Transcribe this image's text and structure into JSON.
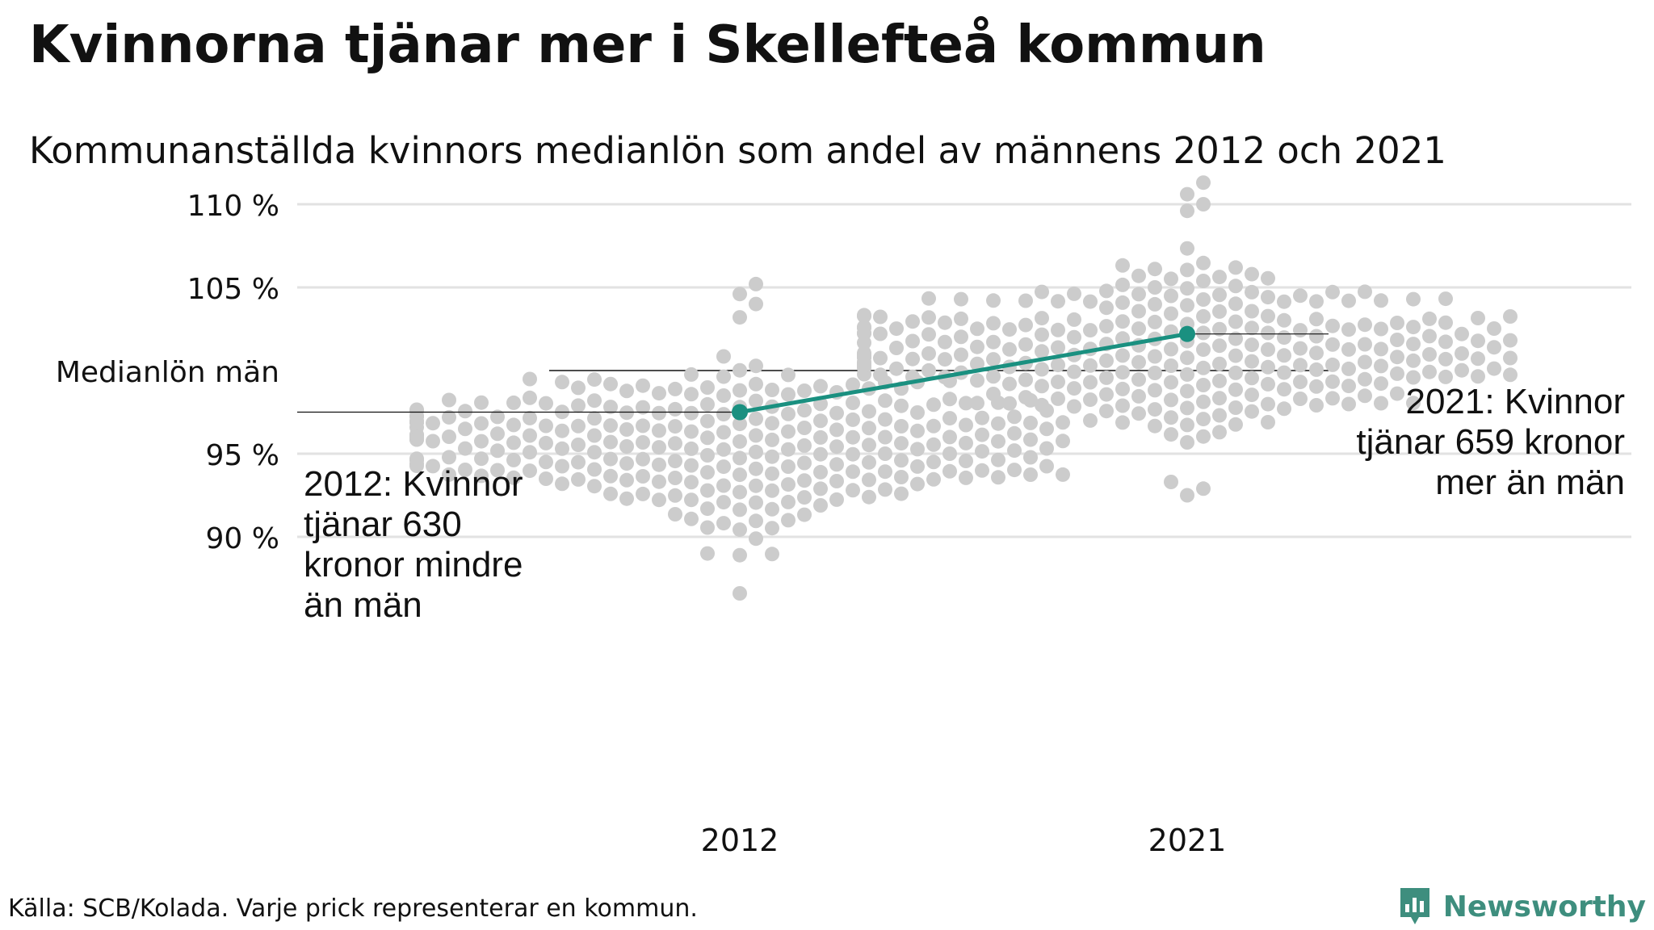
{
  "header": {
    "title": "Kvinnorna tjänar mer i Skellefteå kommun",
    "subtitle": "Kommunanställda kvinnors medianlön som andel av männens 2012 och 2021"
  },
  "footer": {
    "source": "Källa: SCB/Kolada. Varje prick representerar en kommun.",
    "brand": "Newsworthy"
  },
  "colors": {
    "dots": "#cccccc",
    "highlight": "#1a9080",
    "grid": "#e2e2e2",
    "reference": "#111111",
    "brand": "#3e8e7e"
  },
  "chart_data": {
    "type": "scatter",
    "style": "beeswarm",
    "categories": [
      "2012",
      "2021"
    ],
    "ylim": [
      87,
      111
    ],
    "yticks": [
      {
        "value": 110,
        "label": "110 %"
      },
      {
        "value": 105,
        "label": "105 %"
      },
      {
        "value": 100,
        "label": "Medianlön män"
      },
      {
        "value": 95,
        "label": "95 %"
      },
      {
        "value": 90,
        "label": "90 %"
      }
    ],
    "distributions": [
      {
        "category": "2012",
        "count": 290,
        "median": 95.5,
        "spread": 2.3,
        "min": 86.6,
        "max": 105.2,
        "outliers": [
          86.6,
          88.9,
          89.0,
          104.6,
          105.2,
          103.2,
          104.0
        ]
      },
      {
        "category": "2021",
        "count": 290,
        "median": 101.2,
        "spread": 2.2,
        "min": 92.5,
        "max": 111.3,
        "outliers": [
          111.3,
          110.6,
          110.0,
          109.6,
          92.5,
          92.9,
          93.3
        ]
      }
    ],
    "highlight": {
      "name": "Skellefteå",
      "points": [
        {
          "x": "2012",
          "y": 97.5
        },
        {
          "x": "2021",
          "y": 102.2
        }
      ]
    },
    "annotations": [
      {
        "x": "2012",
        "y": 97.5,
        "lines": [
          "2012: Kvinnor",
          "tjänar 630",
          "kronor mindre",
          "än män"
        ]
      },
      {
        "x": "2021",
        "y": 102.2,
        "lines": [
          "2021: Kvinnor",
          "tjänar 659 kronor",
          "mer än män"
        ]
      }
    ],
    "grid": true
  }
}
